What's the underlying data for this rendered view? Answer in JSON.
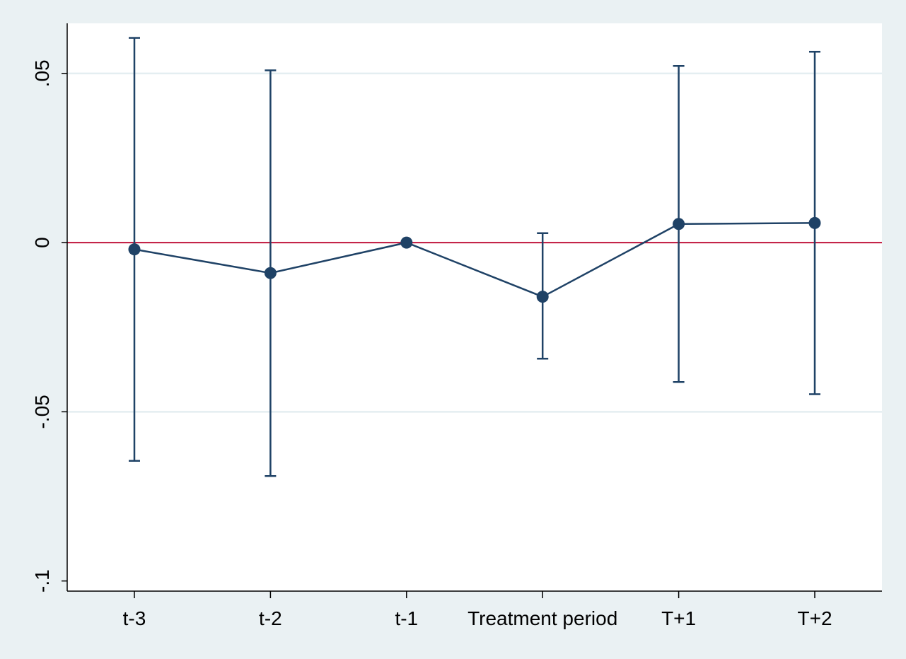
{
  "chart_data": {
    "type": "scatter",
    "title": "",
    "xlabel": "",
    "ylabel": "",
    "categories": [
      "t-3",
      "t-2",
      "t-1",
      "Treatment period",
      "T+1",
      "T+2"
    ],
    "series": [
      {
        "estimates": [
          -0.002,
          -0.009,
          0.0,
          -0.016,
          0.0055,
          0.0058
        ],
        "ci_lower": [
          -0.0645,
          -0.069,
          0.0,
          -0.0343,
          -0.0412,
          -0.0448
        ],
        "ci_upper": [
          0.0605,
          0.0509,
          0.0,
          0.0028,
          0.0522,
          0.0564
        ]
      }
    ],
    "reference_line": {
      "y": 0,
      "color": "#c0143c"
    },
    "ylim": [
      -0.103,
      0.0648
    ],
    "yticks": [
      -0.1,
      -0.05,
      0,
      0.05
    ],
    "ytick_labels": [
      "-.1",
      "-.05",
      "0",
      ".05"
    ],
    "grid": "horizontal",
    "colors": {
      "series": "#1f4266",
      "reference": "#c0143c",
      "grid": "#e4eef1",
      "background": "#eaf1f3",
      "plot": "#ffffff"
    }
  }
}
